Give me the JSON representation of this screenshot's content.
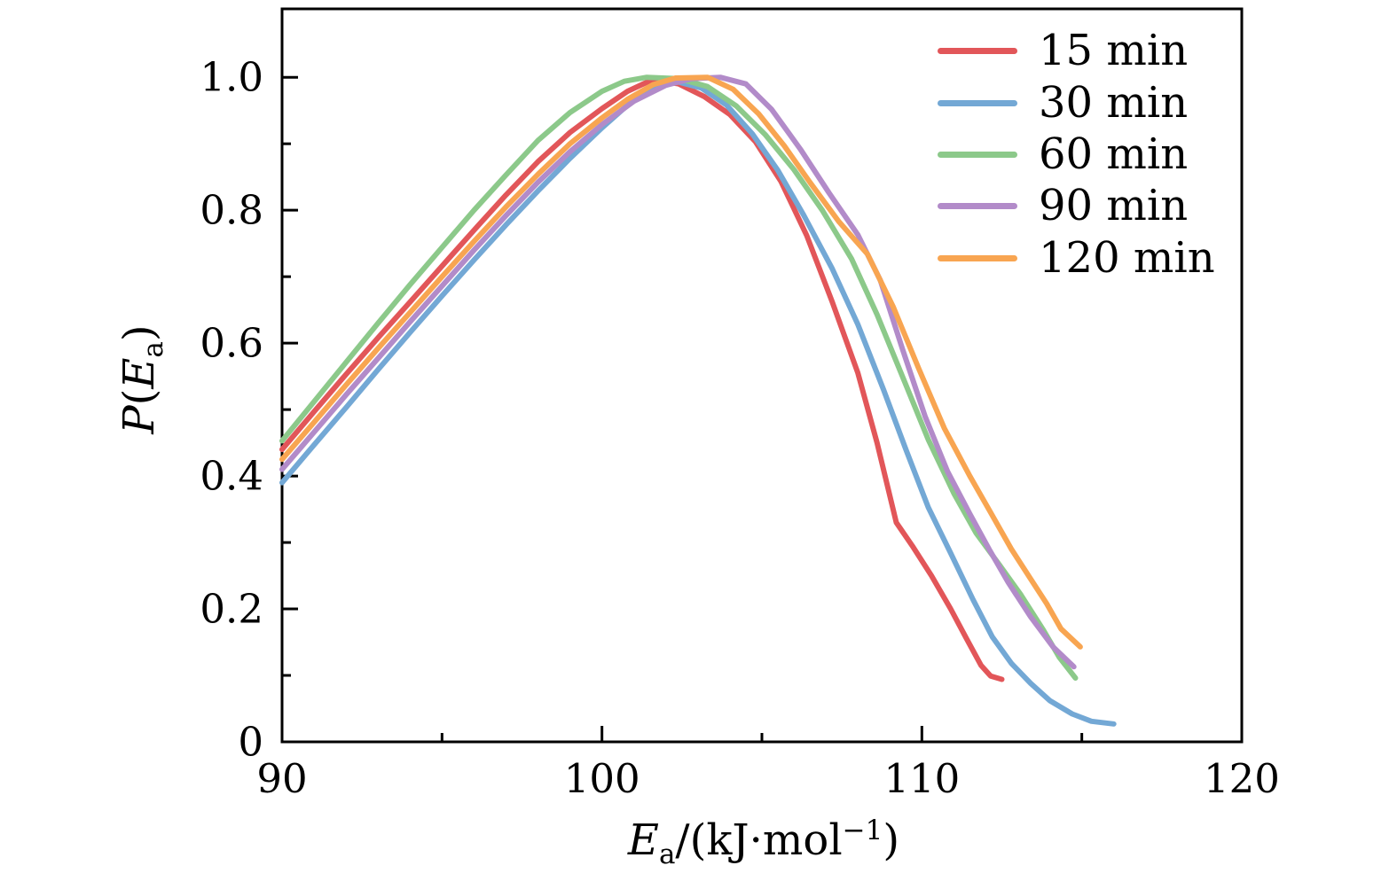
{
  "chart_data": {
    "type": "line",
    "title": "",
    "xlabel": "Ea/(kJ·mol−1)",
    "ylabel": "P(Ea)",
    "xlabel_parts": {
      "var": "E",
      "sub": "a",
      "mid": "/(kJ·mol",
      "sup": "−1",
      "end": ")"
    },
    "ylabel_parts": {
      "var1": "P",
      "open": "(",
      "var2": "E",
      "sub": "a",
      "close": ")"
    },
    "axes": {
      "xlim": [
        90,
        120
      ],
      "ylim": [
        0,
        1.103
      ],
      "xticks_major": [
        {
          "value": 90,
          "label": "90"
        },
        {
          "value": 100,
          "label": "100"
        },
        {
          "value": 110,
          "label": "110"
        },
        {
          "value": 120,
          "label": "120"
        }
      ],
      "xticks_minor": [
        95,
        105,
        115
      ],
      "yticks_major": [
        {
          "value": 0,
          "label": "0"
        },
        {
          "value": 0.2,
          "label": "0.2"
        },
        {
          "value": 0.4,
          "label": "0.4"
        },
        {
          "value": 0.6,
          "label": "0.6"
        },
        {
          "value": 0.8,
          "label": "0.8"
        },
        {
          "value": 1.0,
          "label": "1.0"
        }
      ],
      "yticks_minor": [
        0.1,
        0.3,
        0.5,
        0.7,
        0.9
      ],
      "grid": false,
      "frame": "box",
      "tick_direction": "in",
      "axis_color": "#000000"
    },
    "legend": {
      "position": "upper-right"
    },
    "series": [
      {
        "name": "15 min",
        "color": "#e25659",
        "points": [
          [
            90,
            0.44
          ],
          [
            91,
            0.497
          ],
          [
            92,
            0.553
          ],
          [
            93,
            0.608
          ],
          [
            94,
            0.662
          ],
          [
            95,
            0.716
          ],
          [
            96,
            0.77
          ],
          [
            97,
            0.823
          ],
          [
            98,
            0.873
          ],
          [
            99,
            0.917
          ],
          [
            100,
            0.953
          ],
          [
            100.8,
            0.979
          ],
          [
            101.6,
            0.997
          ],
          [
            102.4,
            0.99
          ],
          [
            103.2,
            0.971
          ],
          [
            104,
            0.944
          ],
          [
            104.8,
            0.903
          ],
          [
            105.6,
            0.843
          ],
          [
            106.4,
            0.762
          ],
          [
            107.2,
            0.662
          ],
          [
            108,
            0.555
          ],
          [
            108.6,
            0.45
          ],
          [
            109.2,
            0.33
          ],
          [
            109.7,
            0.295
          ],
          [
            110.3,
            0.25
          ],
          [
            110.9,
            0.2
          ],
          [
            111.4,
            0.155
          ],
          [
            111.85,
            0.115
          ],
          [
            112.15,
            0.099
          ],
          [
            112.5,
            0.094
          ]
        ]
      },
      {
        "name": "30 min",
        "color": "#73a8d5",
        "points": [
          [
            90,
            0.39
          ],
          [
            91,
            0.447
          ],
          [
            92,
            0.503
          ],
          [
            93,
            0.56
          ],
          [
            94,
            0.616
          ],
          [
            95,
            0.671
          ],
          [
            96,
            0.725
          ],
          [
            97,
            0.778
          ],
          [
            98,
            0.829
          ],
          [
            99,
            0.878
          ],
          [
            100,
            0.924
          ],
          [
            100.8,
            0.958
          ],
          [
            101.6,
            0.985
          ],
          [
            102.3,
            0.994
          ],
          [
            103.1,
            0.984
          ],
          [
            103.9,
            0.958
          ],
          [
            104.7,
            0.915
          ],
          [
            105.5,
            0.86
          ],
          [
            106.3,
            0.793
          ],
          [
            107.2,
            0.712
          ],
          [
            108,
            0.628
          ],
          [
            108.8,
            0.53
          ],
          [
            109.5,
            0.44
          ],
          [
            110.2,
            0.353
          ],
          [
            110.9,
            0.284
          ],
          [
            111.6,
            0.214
          ],
          [
            112.2,
            0.158
          ],
          [
            112.8,
            0.118
          ],
          [
            113.4,
            0.088
          ],
          [
            114,
            0.062
          ],
          [
            114.7,
            0.042
          ],
          [
            115.3,
            0.031
          ],
          [
            116,
            0.027
          ]
        ]
      },
      {
        "name": "60 min",
        "color": "#8cc98a",
        "points": [
          [
            90,
            0.453
          ],
          [
            91,
            0.512
          ],
          [
            92,
            0.571
          ],
          [
            93,
            0.63
          ],
          [
            94,
            0.688
          ],
          [
            95,
            0.744
          ],
          [
            96,
            0.8
          ],
          [
            97,
            0.853
          ],
          [
            98,
            0.905
          ],
          [
            99,
            0.947
          ],
          [
            100,
            0.979
          ],
          [
            100.7,
            0.994
          ],
          [
            101.4,
            1.0
          ],
          [
            102.4,
            0.998
          ],
          [
            103.3,
            0.986
          ],
          [
            104.2,
            0.957
          ],
          [
            105.1,
            0.914
          ],
          [
            106,
            0.861
          ],
          [
            106.9,
            0.799
          ],
          [
            107.8,
            0.727
          ],
          [
            108.6,
            0.643
          ],
          [
            109.4,
            0.549
          ],
          [
            110.2,
            0.455
          ],
          [
            111,
            0.374
          ],
          [
            111.7,
            0.314
          ],
          [
            112.4,
            0.268
          ],
          [
            113.1,
            0.221
          ],
          [
            113.8,
            0.168
          ],
          [
            114.3,
            0.127
          ],
          [
            114.8,
            0.096
          ]
        ]
      },
      {
        "name": "90 min",
        "color": "#b28bc9",
        "points": [
          [
            90,
            0.41
          ],
          [
            91,
            0.466
          ],
          [
            92,
            0.522
          ],
          [
            93,
            0.577
          ],
          [
            94,
            0.632
          ],
          [
            95,
            0.686
          ],
          [
            96,
            0.74
          ],
          [
            97,
            0.792
          ],
          [
            98,
            0.842
          ],
          [
            99,
            0.888
          ],
          [
            100,
            0.929
          ],
          [
            101,
            0.964
          ],
          [
            102,
            0.988
          ],
          [
            102.8,
            0.998
          ],
          [
            103.7,
            1.0
          ],
          [
            104.5,
            0.99
          ],
          [
            105.3,
            0.952
          ],
          [
            106.2,
            0.892
          ],
          [
            107.1,
            0.826
          ],
          [
            108,
            0.763
          ],
          [
            108.7,
            0.695
          ],
          [
            109.4,
            0.59
          ],
          [
            110.1,
            0.49
          ],
          [
            110.8,
            0.407
          ],
          [
            111.5,
            0.343
          ],
          [
            112.1,
            0.29
          ],
          [
            112.7,
            0.24
          ],
          [
            113.4,
            0.188
          ],
          [
            114.1,
            0.143
          ],
          [
            114.75,
            0.113
          ]
        ]
      },
      {
        "name": "120 min",
        "color": "#f8a551",
        "points": [
          [
            90,
            0.425
          ],
          [
            91,
            0.481
          ],
          [
            92,
            0.537
          ],
          [
            93,
            0.592
          ],
          [
            94,
            0.646
          ],
          [
            95,
            0.7
          ],
          [
            96,
            0.753
          ],
          [
            97,
            0.805
          ],
          [
            98,
            0.854
          ],
          [
            99,
            0.9
          ],
          [
            100,
            0.939
          ],
          [
            100.8,
            0.967
          ],
          [
            101.6,
            0.989
          ],
          [
            102.3,
            0.999
          ],
          [
            103.3,
            1.0
          ],
          [
            104.1,
            0.982
          ],
          [
            104.9,
            0.945
          ],
          [
            105.7,
            0.897
          ],
          [
            106.5,
            0.842
          ],
          [
            107.4,
            0.783
          ],
          [
            108.3,
            0.734
          ],
          [
            109.1,
            0.655
          ],
          [
            109.9,
            0.562
          ],
          [
            110.7,
            0.472
          ],
          [
            111.5,
            0.4
          ],
          [
            112.15,
            0.345
          ],
          [
            112.8,
            0.29
          ],
          [
            113.4,
            0.245
          ],
          [
            113.9,
            0.208
          ],
          [
            114.35,
            0.17
          ],
          [
            114.95,
            0.143
          ]
        ]
      }
    ]
  }
}
